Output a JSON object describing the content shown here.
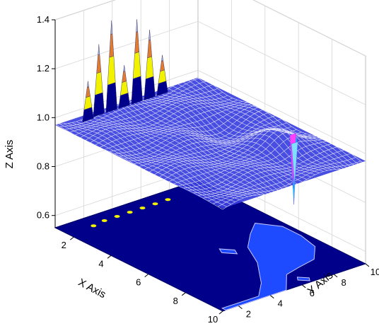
{
  "chart_data": {
    "type": "surface3d",
    "xlabel": "X Axis",
    "ylabel": "Y Axis",
    "zlabel": "Z Axis",
    "xlim": [
      1,
      10
    ],
    "ylim": [
      1,
      10
    ],
    "zlim": [
      0.55,
      1.4
    ],
    "x_ticks": [
      "2",
      "4",
      "6",
      "8",
      "10"
    ],
    "y_ticks": [
      "2",
      "4",
      "6",
      "8",
      "10"
    ],
    "z_ticks": [
      "0.6",
      "0.8",
      "1.0",
      "1.2",
      "1.4"
    ],
    "z_tick_values": [
      0.6,
      0.8,
      1.0,
      1.2,
      1.4
    ],
    "baseline_z": 0.97,
    "grid": true,
    "surface_color": "#3A3FE0",
    "mesh_color": "#FFFFFF",
    "contour_floor_color": "#00008B",
    "contour_region_color": "#1E4BFF",
    "peak_colors": [
      "#00008B",
      "#F2F200",
      "#E07B30",
      "#B0B0D0"
    ],
    "peaks": [
      {
        "x": 1.4,
        "y": 2.6,
        "z": 1.13
      },
      {
        "x": 1.3,
        "y": 3.4,
        "z": 1.26
      },
      {
        "x": 1.3,
        "y": 4.2,
        "z": 1.34
      },
      {
        "x": 1.3,
        "y": 5.0,
        "z": 1.14
      },
      {
        "x": 1.3,
        "y": 5.8,
        "z": 1.31
      },
      {
        "x": 1.3,
        "y": 6.6,
        "z": 1.25
      },
      {
        "x": 1.3,
        "y": 7.4,
        "z": 1.13
      }
    ],
    "dips": [
      {
        "x": 7.0,
        "y": 9.0,
        "z": 0.7
      },
      {
        "x": 6.7,
        "y": 9.3,
        "z": 0.75
      },
      {
        "x": 7.3,
        "y": 8.7,
        "z": 0.8
      }
    ]
  }
}
